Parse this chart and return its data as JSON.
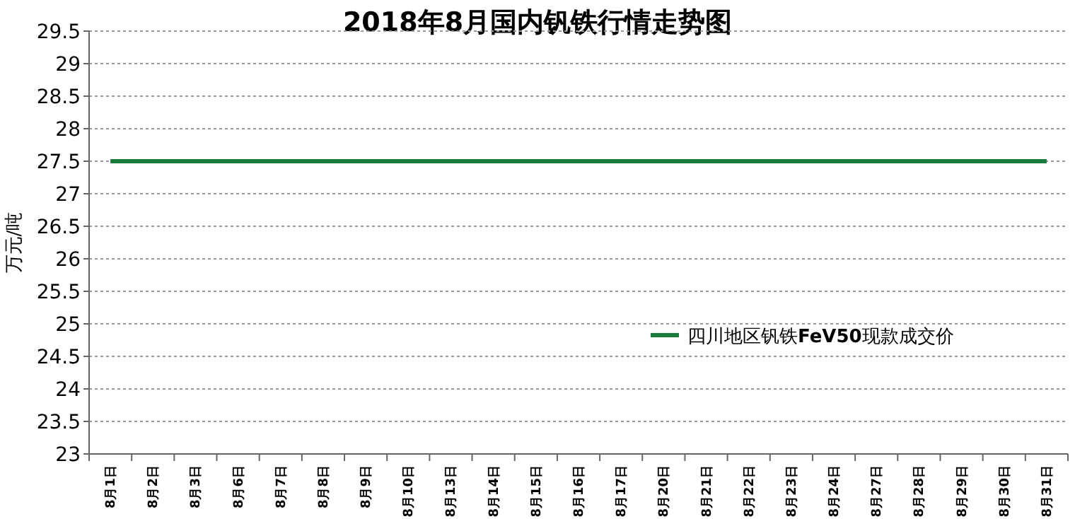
{
  "chart_data": {
    "type": "line",
    "title": "2018年8月国内钒铁行情走势图",
    "ylabel": "万元/吨",
    "categories": [
      "8月1日",
      "8月2日",
      "8月3日",
      "8月6日",
      "8月7日",
      "8月8日",
      "8月9日",
      "8月10日",
      "8月13日",
      "8月14日",
      "8月15日",
      "8月16日",
      "8月17日",
      "8月20日",
      "8月21日",
      "8月22日",
      "8月23日",
      "8月24日",
      "8月27日",
      "8月28日",
      "8月29日",
      "8月30日",
      "8月31日"
    ],
    "series": [
      {
        "name": "四川地区钒铁**FeV50**现款成交价",
        "color": "#1a7a3c",
        "values": [
          27.5,
          27.5,
          27.5,
          27.5,
          27.5,
          27.5,
          27.5,
          27.5,
          27.5,
          27.5,
          27.5,
          27.5,
          27.5,
          27.5,
          27.5,
          27.5,
          27.5,
          27.5,
          27.5,
          27.5,
          27.5,
          27.5,
          27.5
        ]
      }
    ],
    "ylim": [
      23,
      29.5
    ],
    "yticks": [
      23,
      23.5,
      24,
      24.5,
      25,
      25.5,
      26,
      26.5,
      27,
      27.5,
      28,
      28.5,
      29,
      29.5
    ],
    "grid": "y",
    "legend": "right",
    "marker": "none",
    "line_style": "solid"
  }
}
